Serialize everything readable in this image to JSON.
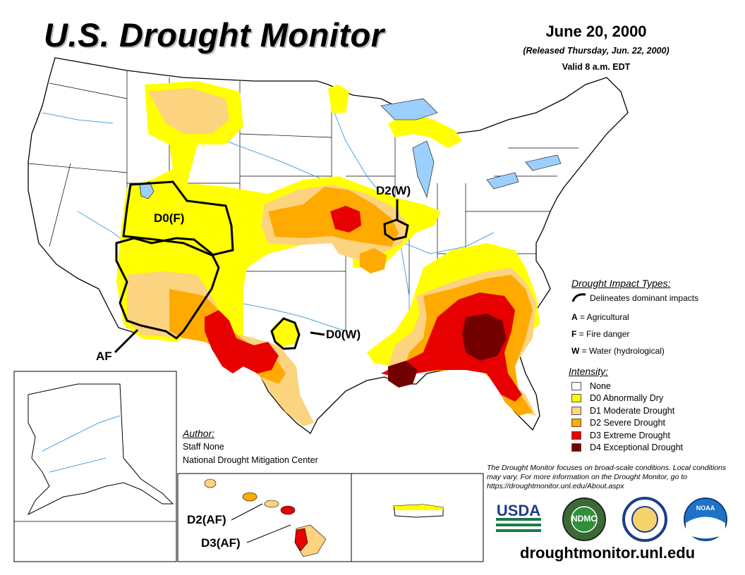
{
  "header": {
    "title": "U.S. Drought Monitor",
    "date": "June 20, 2000",
    "released": "(Released Thursday, Jun. 22, 2000)",
    "valid": "Valid 8 a.m. EDT"
  },
  "map_labels": {
    "d0f": "D0(F)",
    "d2w": "D2(W)",
    "d0w": "D0(W)",
    "af": "AF",
    "hi_d2": "D2(AF)",
    "hi_d3": "D3(AF)"
  },
  "impacts": {
    "heading": "Drought Impact Types:",
    "delineates": "Delineates dominant impacts",
    "items": [
      {
        "code": "A",
        "desc": " = Agricultural"
      },
      {
        "code": "F",
        "desc": " = Fire danger"
      },
      {
        "code": "W",
        "desc": " = Water (hydrological)"
      }
    ]
  },
  "intensity": {
    "heading": "Intensity:",
    "items": [
      {
        "label": "None",
        "color": "#ffffff"
      },
      {
        "label": "D0 Abnormally Dry",
        "color": "#ffff00"
      },
      {
        "label": "D1 Moderate Drought",
        "color": "#fcd37f"
      },
      {
        "label": "D2 Severe Drought",
        "color": "#ffaa00"
      },
      {
        "label": "D3 Extreme Drought",
        "color": "#e60000"
      },
      {
        "label": "D4 Exceptional Drought",
        "color": "#730000"
      }
    ]
  },
  "author": {
    "heading": "Author:",
    "name": "Staff None",
    "org": "National Drought Mitigation Center"
  },
  "note": "The Drought Monitor focuses on broad-scale conditions. Local conditions may vary. For more information on the Drought Monitor, go to https://droughtmonitor.unl.edu/About.aspx",
  "logos": {
    "usda": "USDA",
    "ndmc": "NDMC",
    "noaa": "NOAA"
  },
  "url": "droughtmonitor.unl.edu",
  "colors": {
    "none": "#ffffff",
    "d0": "#ffff00",
    "d1": "#fcd37f",
    "d2": "#ffaa00",
    "d3": "#e60000",
    "d4": "#730000",
    "water": "#9ccfff",
    "river": "#4aa3df"
  }
}
